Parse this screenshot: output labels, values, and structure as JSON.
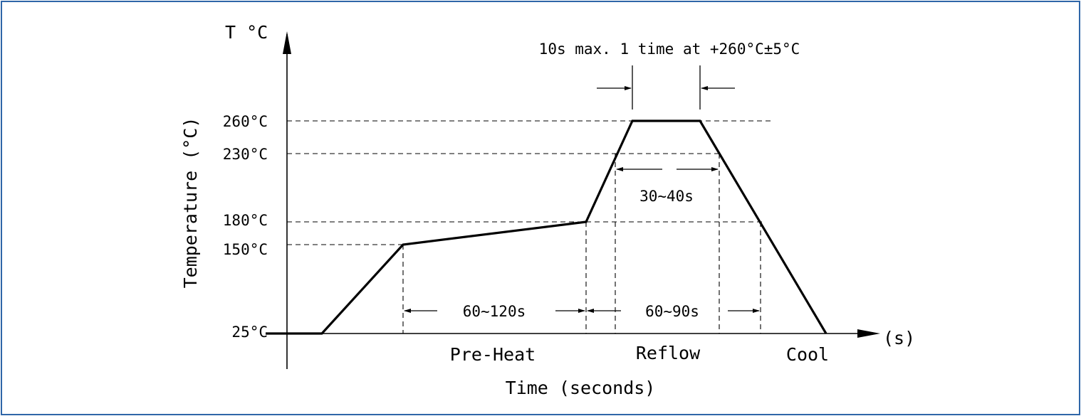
{
  "diagram": {
    "y_axis_unit": "T °C",
    "y_axis_title": "Temperature (°C)",
    "x_axis_unit": "(s)",
    "x_axis_title": "Time (seconds)",
    "temperature_levels": [
      {
        "key": "t260",
        "label": "260°C"
      },
      {
        "key": "t230",
        "label": "230°C"
      },
      {
        "key": "t180",
        "label": "180°C"
      },
      {
        "key": "t150",
        "label": "150°C"
      },
      {
        "key": "t25",
        "label": "25°C"
      }
    ],
    "peak_annotation": "10s max. 1 time at +260°C±5°C",
    "time_above_230": "30~40s",
    "preheat_duration": "60~120s",
    "time_above_180": "60~90s",
    "zones": {
      "preheat": "Pre-Heat",
      "reflow": "Reflow",
      "cool": "Cool"
    }
  }
}
